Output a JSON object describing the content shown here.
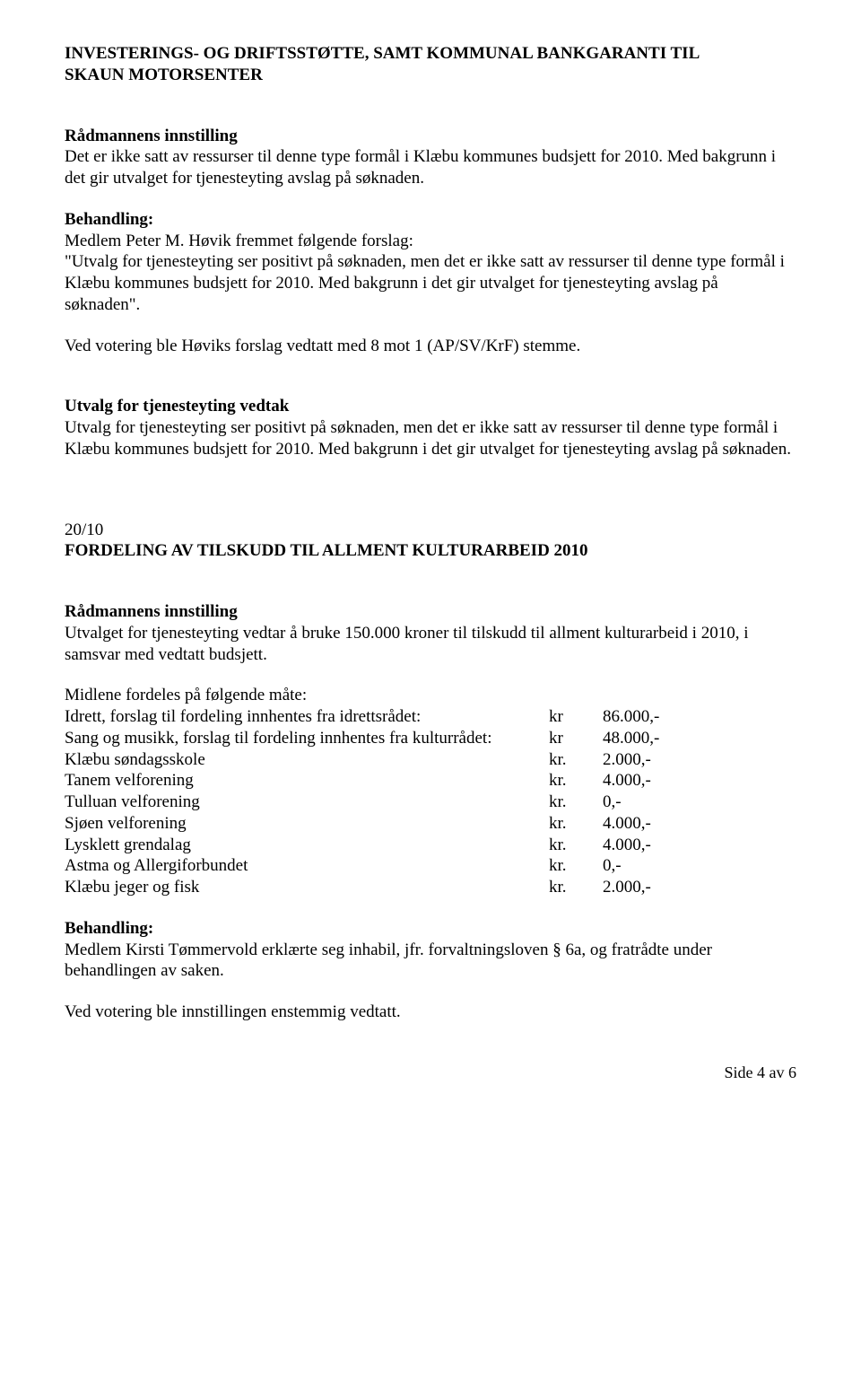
{
  "title_line1": "INVESTERINGS- OG DRIFTSSTØTTE, SAMT KOMMUNAL BANKGARANTI TIL",
  "title_line2": "SKAUN MOTORSENTER",
  "sec1": {
    "heading": "Rådmannens innstilling",
    "p1": "Det er ikke satt av ressurser til denne type formål i Klæbu kommunes budsjett for 2010. Med bakgrunn i det gir utvalget for tjenesteyting avslag på søknaden.",
    "heading2": "Behandling:",
    "p2a": "Medlem Peter M. Høvik fremmet følgende forslag:",
    "p2b": "\"Utvalg for tjenesteyting ser positivt på søknaden, men det er ikke satt av ressurser til denne type formål i Klæbu kommunes budsjett for 2010. Med bakgrunn i det gir utvalget for tjenesteyting avslag på søknaden\".",
    "p3": "Ved votering ble Høviks forslag vedtatt med 8 mot 1 (AP/SV/KrF) stemme.",
    "heading3": "Utvalg for tjenesteyting vedtak",
    "p4": "Utvalg for tjenesteyting ser positivt på søknaden, men det er ikke satt av ressurser til denne type formål i Klæbu kommunes budsjett for 2010. Med bakgrunn i det gir utvalget for tjenesteyting avslag på søknaden."
  },
  "sec2": {
    "num": "20/10",
    "title": "FORDELING AV TILSKUDD TIL ALLMENT KULTURARBEID 2010",
    "heading": "Rådmannens innstilling",
    "p1": "Utvalget for tjenesteyting vedtar å bruke 150.000 kroner til tilskudd til allment kulturarbeid i 2010, i samsvar med vedtatt budsjett.",
    "p2": "Midlene fordeles på følgende måte:",
    "rows": [
      {
        "label": "Idrett, forslag til fordeling innhentes fra idrettsrådet:",
        "kr": "kr",
        "amt": "86.000,-"
      },
      {
        "label": "Sang og musikk, forslag til fordeling innhentes fra kulturrådet:",
        "kr": "kr",
        "amt": "48.000,-"
      },
      {
        "label": "Klæbu søndagsskole",
        "kr": "kr.",
        "amt": "2.000,-"
      },
      {
        "label": "Tanem velforening",
        "kr": "kr.",
        "amt": "4.000,-"
      },
      {
        "label": "Tulluan velforening",
        "kr": "kr.",
        "amt": "0,-"
      },
      {
        "label": "Sjøen velforening",
        "kr": "kr.",
        "amt": "4.000,-"
      },
      {
        "label": "Lysklett grendalag",
        "kr": "kr.",
        "amt": "4.000,-"
      },
      {
        "label": "Astma og Allergiforbundet",
        "kr": "kr.",
        "amt": "0,-"
      },
      {
        "label": "Klæbu jeger og fisk",
        "kr": "kr.",
        "amt": "2.000,-"
      }
    ],
    "heading2": "Behandling:",
    "p3": "Medlem Kirsti Tømmervold erklærte seg inhabil, jfr. forvaltningsloven § 6a, og fratrådte under behandlingen av saken.",
    "p4": "Ved votering ble innstillingen enstemmig vedtatt."
  },
  "footer": "Side 4 av 6"
}
